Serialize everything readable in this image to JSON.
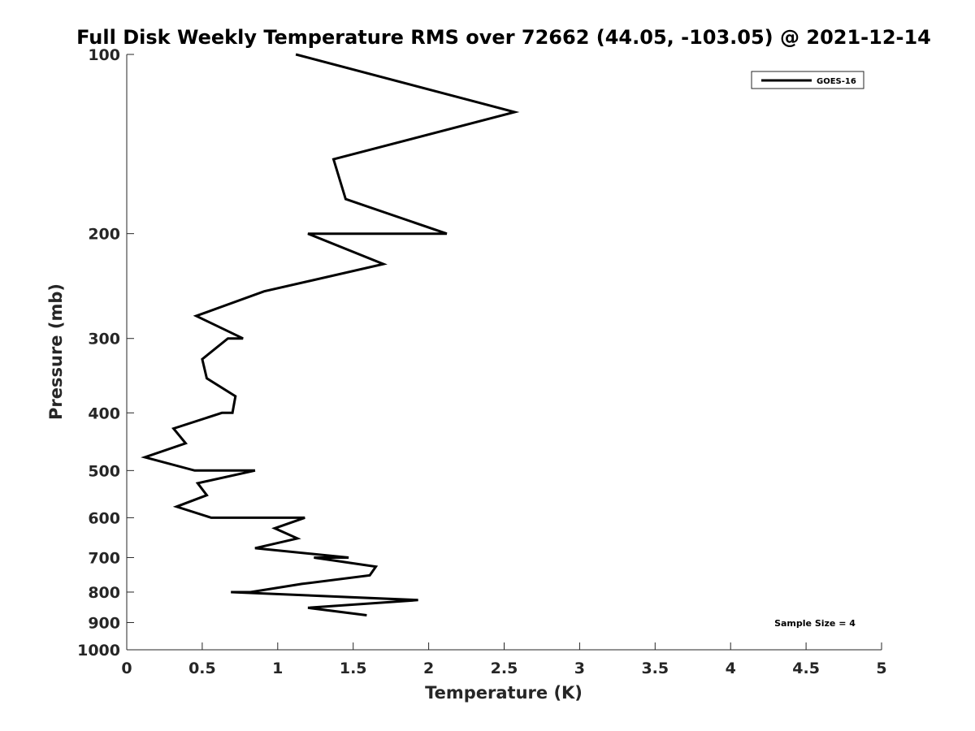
{
  "chart_data": {
    "type": "line",
    "title": "Full Disk Weekly Temperature RMS over 72662 (44.05, -103.05) @ 2021-12-14",
    "xlabel": "Temperature (K)",
    "ylabel": "Pressure (mb)",
    "xlim": [
      0,
      5
    ],
    "ylim": [
      100,
      1000
    ],
    "y_scale": "log",
    "y_reversed": true,
    "x_ticks": [
      "0",
      "0.5",
      "1",
      "1.5",
      "2",
      "2.5",
      "3",
      "3.5",
      "4",
      "4.5",
      "5"
    ],
    "y_ticks": [
      "100",
      "200",
      "300",
      "400",
      "500",
      "600",
      "700",
      "800",
      "900",
      "1000"
    ],
    "grid": false,
    "legend_position": "top-right",
    "annotation": "Sample Size = 4",
    "series": [
      {
        "name": "GOES-16",
        "color": "#000000",
        "x": [
          1.12,
          2.57,
          1.37,
          1.45,
          2.12,
          1.2,
          1.7,
          0.91,
          0.46,
          0.77,
          0.67,
          0.5,
          0.53,
          0.72,
          0.7,
          0.63,
          0.31,
          0.39,
          0.12,
          0.45,
          0.85,
          0.47,
          0.53,
          0.33,
          0.56,
          1.18,
          0.98,
          1.13,
          0.85,
          1.47,
          1.24,
          1.65,
          1.61,
          1.16,
          0.82,
          0.69,
          1.93,
          1.2,
          1.59
        ],
        "y": [
          100,
          125,
          150,
          175,
          200,
          200,
          225,
          250,
          275,
          300,
          300,
          325,
          350,
          375,
          400,
          400,
          425,
          450,
          475,
          500,
          500,
          525,
          550,
          575,
          600,
          600,
          625,
          650,
          675,
          700,
          700,
          725,
          750,
          775,
          800,
          800,
          825,
          850,
          875
        ]
      }
    ]
  }
}
